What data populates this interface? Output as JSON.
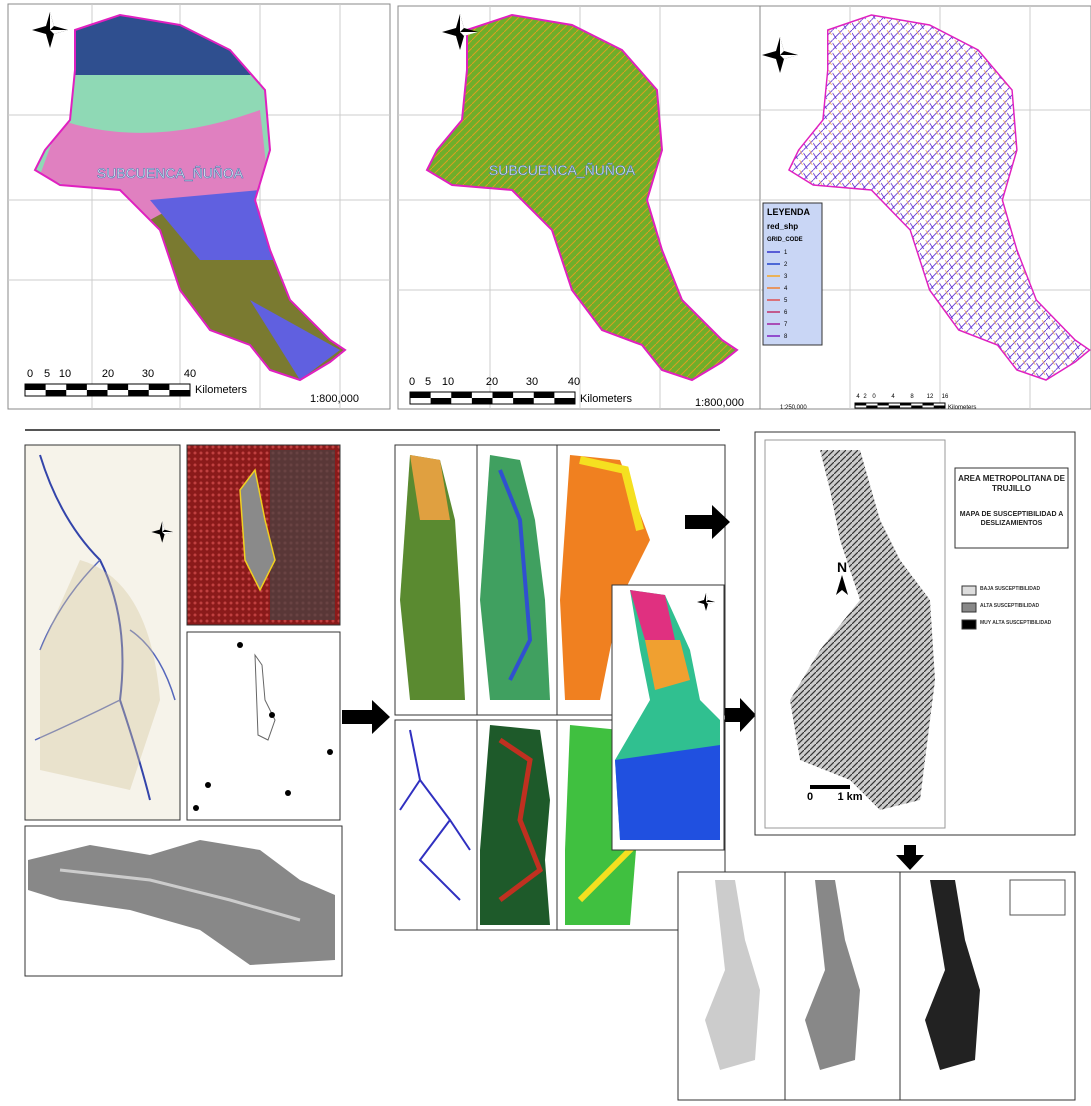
{
  "top_maps": [
    {
      "label": "SUBCUENCA_ÑUÑOA",
      "scale_ticks": [
        "0",
        "5",
        "10",
        "20",
        "30",
        "40"
      ],
      "scale_unit": "Kilometers",
      "ratio": "1:800,000"
    },
    {
      "label": "SUBCUENCA_ÑUÑOA",
      "scale_ticks": [
        "0",
        "5",
        "10",
        "20",
        "30",
        "40"
      ],
      "scale_unit": "Kilometers",
      "ratio": "1:800,000"
    },
    {
      "legend": {
        "title": "LEYENDA",
        "layer": "red_shp",
        "field": "GRID_CODE",
        "classes": [
          "1",
          "2",
          "3",
          "4",
          "5",
          "6",
          "7",
          "8"
        ]
      },
      "scale_ticks": [
        "4",
        "2",
        "0",
        "4",
        "8",
        "12",
        "16"
      ],
      "scale_unit": "Kilometers",
      "ratio": "1:250,000"
    }
  ],
  "final_map": {
    "title": "AREA METROPOLITANA DE TRUJILLO",
    "subtitle": "MAPA DE SUSCEPTIBILIDAD A DESLIZAMIENTOS",
    "legend": [
      "BAJA SUSCEPTIBILIDAD",
      "ALTA SUSCEPTIBILIDAD",
      "MUY ALTA SUSCEPTIBILIDAD"
    ],
    "north": "N",
    "scale": [
      "0",
      "1 km"
    ]
  }
}
